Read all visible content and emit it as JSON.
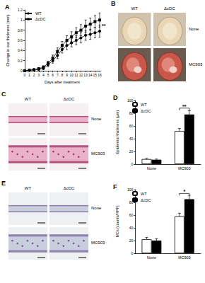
{
  "photo_panels": [
    {
      "panel": "B",
      "columns": [
        "WT",
        "ΔcDC"
      ],
      "rows": [
        "None",
        "MC903"
      ]
    },
    {
      "panel": "C",
      "columns": [
        "WT",
        "ΔcDC"
      ],
      "rows": [
        "None",
        "MC903"
      ]
    },
    {
      "panel": "E",
      "columns": [
        "WT",
        "ΔcDC"
      ],
      "rows": [
        "None",
        "MC903"
      ]
    }
  ],
  "chart_data": [
    {
      "panel": "A",
      "type": "line",
      "xlabel": "Days after treatment",
      "ylabel": "Change in ear thickness (mm)",
      "x": [
        0,
        1,
        2,
        3,
        4,
        5,
        6,
        7,
        8,
        9,
        10,
        11,
        12,
        13,
        14,
        15,
        16
      ],
      "xlim": [
        0,
        16
      ],
      "xticks": [
        0,
        1,
        2,
        3,
        4,
        5,
        6,
        7,
        8,
        9,
        10,
        11,
        12,
        13,
        14,
        15,
        16
      ],
      "ylim": [
        0,
        1.2
      ],
      "yticks": [
        0,
        0.2,
        0.4,
        0.6,
        0.8,
        1,
        1.2
      ],
      "legend": "top-left",
      "series": [
        {
          "name": "WT",
          "color": "#000000",
          "marker": "circle",
          "values": [
            0,
            0.01,
            0.02,
            0.03,
            0.05,
            0.12,
            0.2,
            0.3,
            0.42,
            0.5,
            0.55,
            0.6,
            0.65,
            0.7,
            0.72,
            0.75,
            0.78
          ],
          "errors": [
            0,
            0.01,
            0.01,
            0.02,
            0.03,
            0.04,
            0.05,
            0.06,
            0.07,
            0.08,
            0.08,
            0.09,
            0.1,
            0.1,
            0.1,
            0.1,
            0.12
          ]
        },
        {
          "name": "ΔcDC",
          "color": "#000000",
          "marker": "square",
          "values": [
            0,
            0.01,
            0.02,
            0.04,
            0.07,
            0.15,
            0.25,
            0.38,
            0.5,
            0.6,
            0.67,
            0.75,
            0.8,
            0.88,
            0.92,
            0.97,
            1.0
          ],
          "errors": [
            0,
            0.01,
            0.02,
            0.02,
            0.03,
            0.04,
            0.06,
            0.07,
            0.08,
            0.09,
            0.1,
            0.1,
            0.11,
            0.12,
            0.12,
            0.12,
            0.14
          ]
        }
      ],
      "annotations": [
        {
          "text": "**",
          "x": 16,
          "y": 0.89
        }
      ]
    },
    {
      "panel": "D",
      "type": "bar",
      "ylabel": "Epidermal thickness (μm)",
      "categories": [
        "None",
        "MC903"
      ],
      "ylim": [
        0,
        100
      ],
      "yticks": [
        0,
        20,
        40,
        60,
        80,
        100
      ],
      "legend": "top-left",
      "series": [
        {
          "name": "WT",
          "color": "#ffffff",
          "values": [
            8,
            52
          ],
          "errors": [
            1,
            4
          ]
        },
        {
          "name": "ΔcDC",
          "color": "#000000",
          "values": [
            7,
            78
          ],
          "errors": [
            1,
            6
          ]
        }
      ],
      "annotations": [
        {
          "text": "**",
          "category": "MC903",
          "y": 88
        }
      ]
    },
    {
      "panel": "F",
      "type": "bar",
      "ylabel": "MCs (counts/HPF)",
      "categories": [
        "None",
        "MC903"
      ],
      "ylim": [
        0,
        100
      ],
      "yticks": [
        0,
        20,
        40,
        60,
        80,
        100
      ],
      "legend": "top-left",
      "series": [
        {
          "name": "WT",
          "color": "#ffffff",
          "values": [
            22,
            58
          ],
          "errors": [
            3,
            5
          ]
        },
        {
          "name": "ΔcDC",
          "color": "#000000",
          "values": [
            20,
            85
          ],
          "errors": [
            3,
            6
          ]
        }
      ],
      "annotations": [
        {
          "text": "*",
          "category": "MC903",
          "y": 94
        }
      ]
    }
  ]
}
